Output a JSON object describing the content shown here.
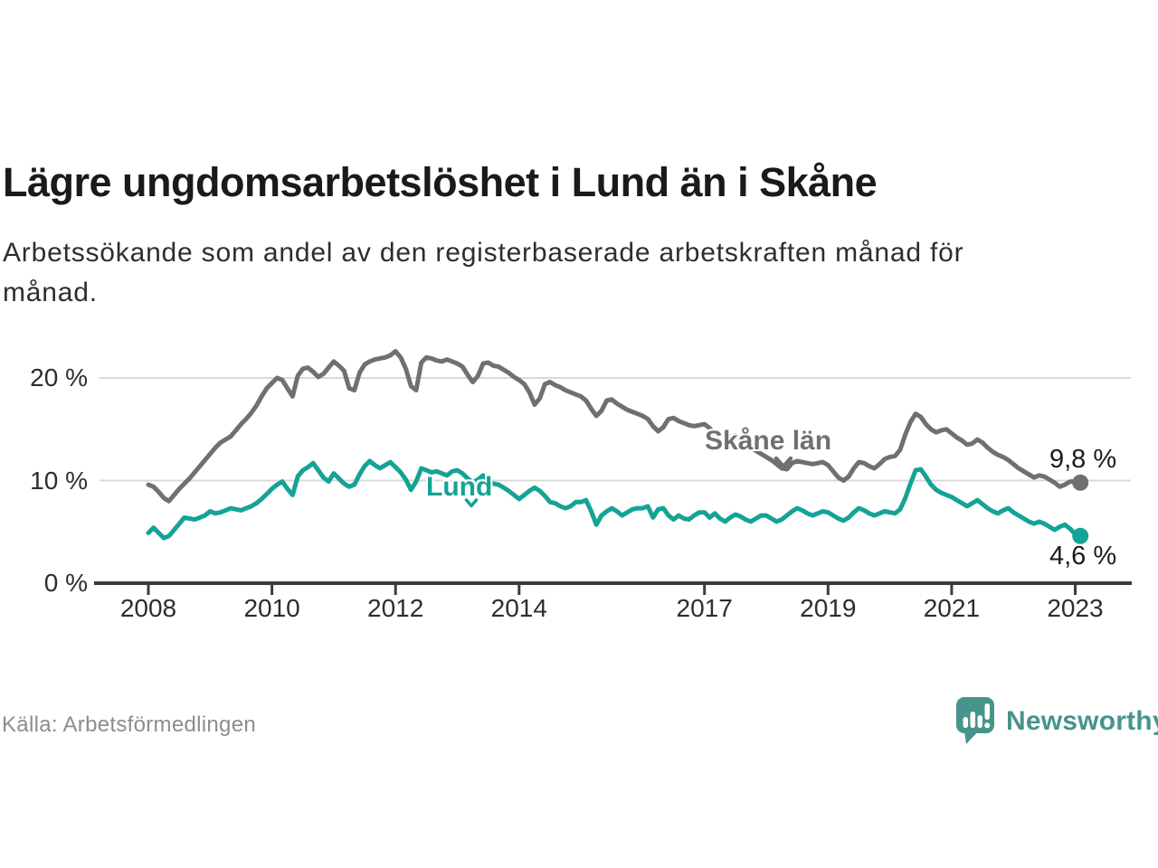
{
  "header": {
    "title": "Lägre ungdomsarbetslöshet i Lund än i Skåne",
    "subtitle": "Arbetssökande som andel av den registerbaserade arbetskraften månad för\nmånad."
  },
  "footer": {
    "source": "Källa: Arbetsförmedlingen",
    "brand": "Newsworthy"
  },
  "colors": {
    "skane_line": "#6f6f74",
    "lund_line": "#14a396",
    "grid": "#d8d8d8",
    "axis": "#3c3c3c",
    "tick_text": "#2d2d2d",
    "value_text": "#1b1b1b",
    "logo": "#46948c",
    "muted_text": "#8d8d8d"
  },
  "chart_data": {
    "type": "line",
    "title": "Lägre ungdomsarbetslöshet i Lund än i Skåne",
    "xlabel": "",
    "ylabel": "Arbetssökande som andel av den registerbaserade arbetskraften",
    "x_unit": "monthly, decimal years",
    "x_start": 2008.0,
    "x_step": 0.0833333,
    "x_ticks": [
      2008,
      2010,
      2012,
      2014,
      2017,
      2019,
      2021,
      2023
    ],
    "y_ticks": [
      {
        "label": "0 %",
        "value": 0,
        "grid": false
      },
      {
        "label": "10 %",
        "value": 10,
        "grid": true
      },
      {
        "label": "20 %",
        "value": 20,
        "grid": true
      }
    ],
    "xlim": [
      2007.1,
      2023.9
    ],
    "ylim": [
      0,
      24
    ],
    "grid": "horizontal-only",
    "legend": "inline-labels",
    "series": [
      {
        "id": "skane",
        "name": "Skåne län",
        "color": "#6f6f74",
        "end_label": "9,8 %",
        "end_value": 9.8,
        "values": [
          9.6,
          9.4,
          8.9,
          8.3,
          8.0,
          8.6,
          9.2,
          9.7,
          10.2,
          10.8,
          11.4,
          12.0,
          12.6,
          13.2,
          13.7,
          14.0,
          14.3,
          14.9,
          15.5,
          16.0,
          16.6,
          17.3,
          18.2,
          19.0,
          19.5,
          20.0,
          19.8,
          19.0,
          18.2,
          20.2,
          20.9,
          21.0,
          20.6,
          20.1,
          20.4,
          21.0,
          21.6,
          21.2,
          20.7,
          19.0,
          18.8,
          20.5,
          21.3,
          21.6,
          21.8,
          21.9,
          22.0,
          22.2,
          22.6,
          22.0,
          20.9,
          19.2,
          18.8,
          21.5,
          22.0,
          21.9,
          21.7,
          21.6,
          21.8,
          21.6,
          21.4,
          21.1,
          20.3,
          19.6,
          20.2,
          21.4,
          21.5,
          21.2,
          21.1,
          20.8,
          20.5,
          20.1,
          19.8,
          19.4,
          18.6,
          17.4,
          18.0,
          19.4,
          19.6,
          19.3,
          19.1,
          18.8,
          18.6,
          18.4,
          18.2,
          17.8,
          17.0,
          16.3,
          16.8,
          17.8,
          17.9,
          17.5,
          17.2,
          16.9,
          16.7,
          16.5,
          16.3,
          16.0,
          15.3,
          14.8,
          15.2,
          16.0,
          16.1,
          15.8,
          15.6,
          15.4,
          15.3,
          15.4,
          15.5,
          15.1,
          14.5,
          13.8,
          13.6,
          14.3,
          14.4,
          14.0,
          13.6,
          13.2,
          12.9,
          12.6,
          12.3,
          12.0,
          11.6,
          11.2,
          11.1,
          11.7,
          11.9,
          11.8,
          11.7,
          11.6,
          11.7,
          11.8,
          11.5,
          10.9,
          10.3,
          10.0,
          10.4,
          11.2,
          11.8,
          11.7,
          11.4,
          11.2,
          11.6,
          12.1,
          12.3,
          12.4,
          13.0,
          14.5,
          15.7,
          16.5,
          16.2,
          15.5,
          15.0,
          14.7,
          14.9,
          15.0,
          14.6,
          14.2,
          13.9,
          13.5,
          13.6,
          14.0,
          13.7,
          13.2,
          12.8,
          12.5,
          12.3,
          12.0,
          11.6,
          11.2,
          10.9,
          10.6,
          10.3,
          10.5,
          10.4,
          10.1,
          9.8,
          9.4,
          9.6,
          9.9,
          9.9,
          9.8
        ]
      },
      {
        "id": "lund",
        "name": "Lund",
        "color": "#14a396",
        "end_label": "4,6 %",
        "end_value": 4.6,
        "values": [
          4.9,
          5.4,
          4.9,
          4.4,
          4.6,
          5.2,
          5.8,
          6.4,
          6.3,
          6.2,
          6.4,
          6.6,
          7.0,
          6.8,
          6.9,
          7.1,
          7.3,
          7.2,
          7.1,
          7.3,
          7.5,
          7.8,
          8.2,
          8.7,
          9.2,
          9.6,
          9.9,
          9.2,
          8.6,
          10.4,
          11.0,
          11.3,
          11.7,
          11.0,
          10.3,
          9.9,
          10.7,
          10.2,
          9.7,
          9.4,
          9.6,
          10.6,
          11.4,
          11.9,
          11.5,
          11.2,
          11.5,
          11.8,
          11.3,
          10.8,
          10.1,
          9.1,
          9.9,
          11.2,
          11.0,
          10.8,
          10.9,
          10.7,
          10.5,
          10.9,
          11.0,
          10.7,
          10.2,
          9.8,
          10.1,
          10.5,
          9.9,
          9.7,
          9.6,
          9.3,
          9.0,
          8.6,
          8.2,
          8.6,
          9.0,
          9.3,
          9.0,
          8.5,
          7.9,
          7.8,
          7.5,
          7.3,
          7.5,
          7.9,
          7.9,
          8.1,
          7.0,
          5.7,
          6.6,
          7.0,
          7.3,
          7.0,
          6.6,
          6.9,
          7.2,
          7.3,
          7.3,
          7.5,
          6.4,
          7.2,
          7.3,
          6.6,
          6.2,
          6.6,
          6.3,
          6.2,
          6.6,
          6.9,
          6.9,
          6.4,
          6.8,
          6.3,
          6.0,
          6.4,
          6.7,
          6.5,
          6.2,
          6.0,
          6.3,
          6.6,
          6.6,
          6.3,
          6.0,
          6.2,
          6.6,
          7.0,
          7.3,
          7.1,
          6.8,
          6.6,
          6.8,
          7.0,
          6.9,
          6.6,
          6.3,
          6.1,
          6.4,
          6.9,
          7.3,
          7.1,
          6.8,
          6.6,
          6.8,
          7.0,
          6.9,
          6.8,
          7.2,
          8.3,
          9.7,
          11.0,
          11.1,
          10.4,
          9.6,
          9.1,
          8.8,
          8.6,
          8.4,
          8.1,
          7.8,
          7.5,
          7.8,
          8.1,
          7.7,
          7.3,
          7.0,
          6.8,
          7.1,
          7.3,
          6.9,
          6.6,
          6.3,
          6.0,
          5.8,
          6.0,
          5.8,
          5.5,
          5.2,
          5.5,
          5.7,
          5.3,
          4.8,
          4.6
        ]
      }
    ]
  }
}
